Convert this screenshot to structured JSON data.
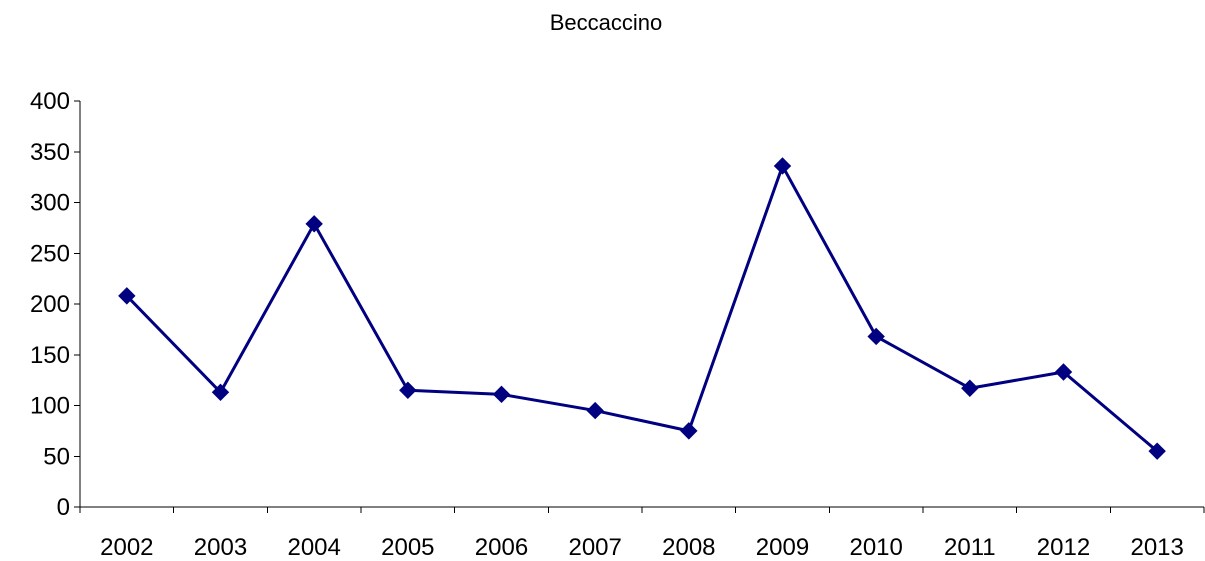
{
  "chart_data": {
    "type": "line",
    "title": "Beccaccino",
    "xlabel": "",
    "ylabel": "",
    "categories": [
      "2002",
      "2003",
      "2004",
      "2005",
      "2006",
      "2007",
      "2008",
      "2009",
      "2010",
      "2011",
      "2012",
      "2013"
    ],
    "series": [
      {
        "values": [
          208,
          113,
          279,
          115,
          111,
          95,
          75,
          336,
          168,
          117,
          133,
          55
        ],
        "color": "#000080",
        "marker": "diamond"
      }
    ],
    "ylim": [
      0,
      400
    ],
    "yticks": [
      0,
      50,
      100,
      150,
      200,
      250,
      300,
      350,
      400
    ],
    "grid": false,
    "legend": "none"
  }
}
